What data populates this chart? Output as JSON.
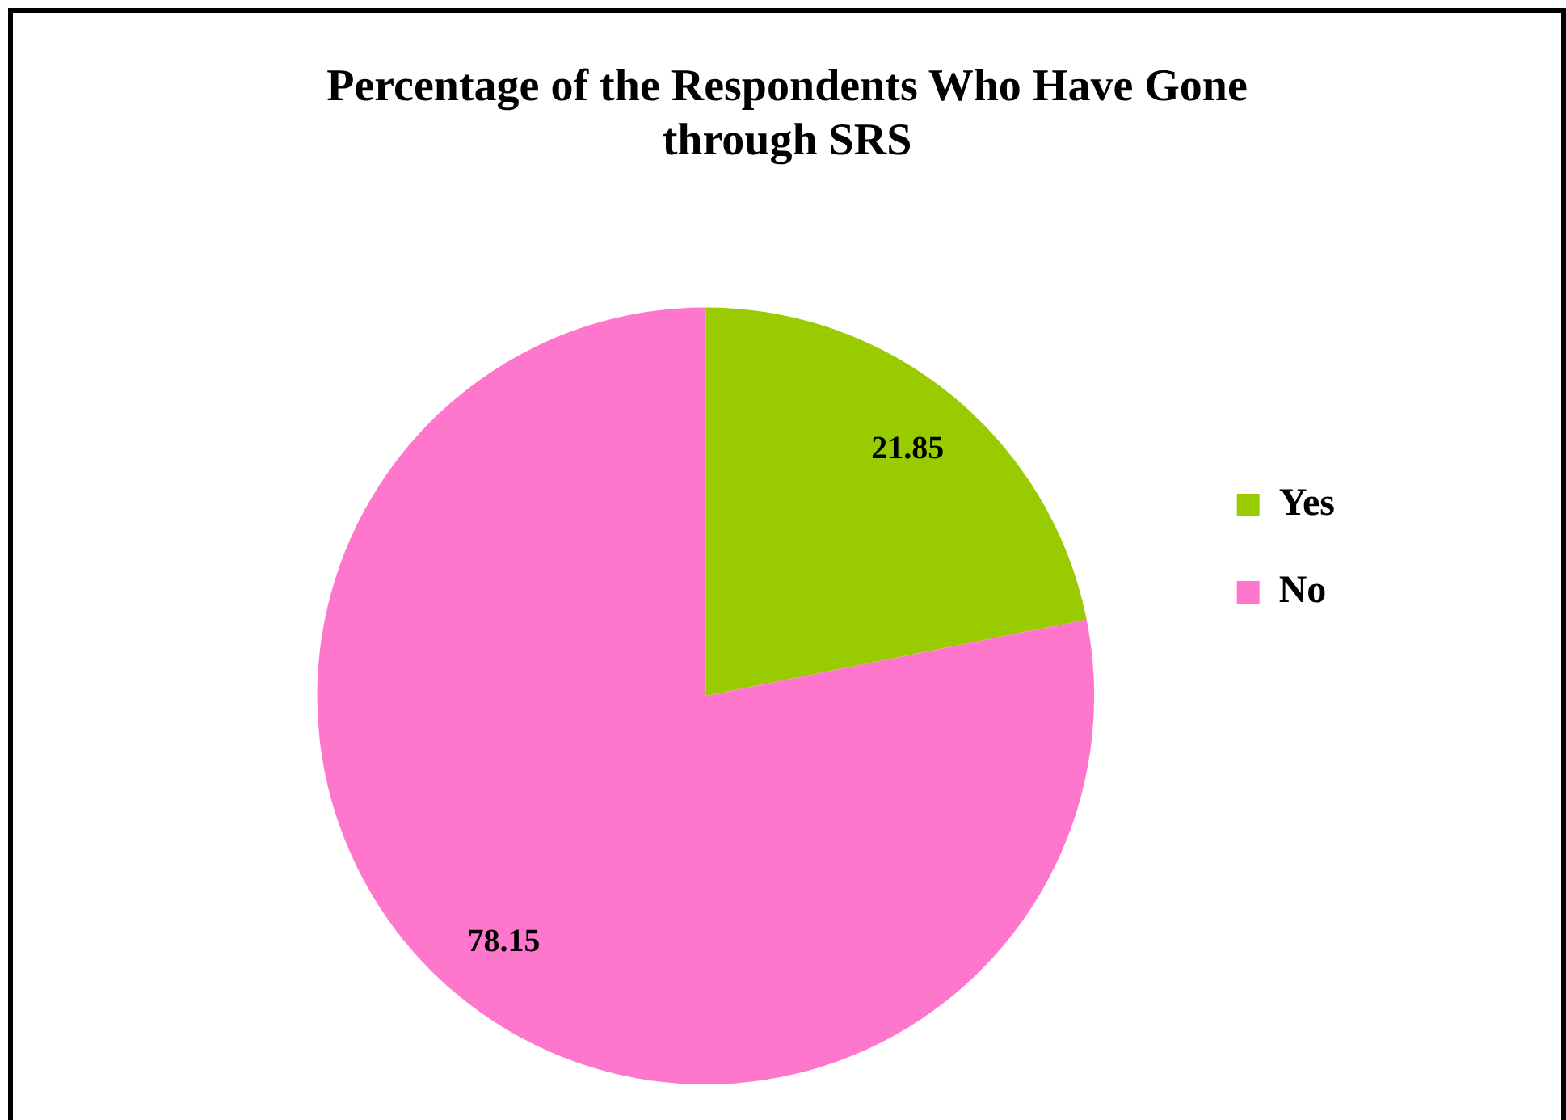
{
  "chart_data": {
    "type": "pie",
    "title": "Percentage of the Respondents Who Have Gone through SRS",
    "categories": [
      "Yes",
      "No"
    ],
    "values": [
      21.85,
      78.15
    ],
    "colors": [
      "#99cc00",
      "#ff77cc"
    ],
    "data_labels": true,
    "legend": "right"
  }
}
